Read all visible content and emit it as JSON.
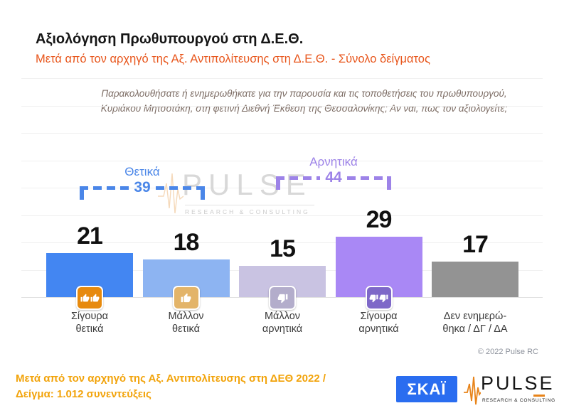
{
  "slide": {
    "title": "Αξιολόγηση Πρωθυπουργού στη Δ.Ε.Θ.",
    "subtitle": "Μετά από τον αρχηγό της Αξ. Αντιπολίτευσης στη Δ.Ε.Θ.  -  Σύνολο δείγματος",
    "question_line1": "Παρακολουθήσατε ή ενημερωθήκατε για την παρουσία και τις τοποθετήσεις του πρωθυπουργού,",
    "question_line2": "Κυριάκου Μητσοτάκη, στη φετινή Διεθνή Έκθεση της Θεσσαλονίκης; Αν ναι, πως τον αξιολογείτε;",
    "copyright": "© 2022 Pulse RC"
  },
  "brackets": {
    "positive": {
      "label": "Θετικά",
      "value": "39",
      "color": "#4a86e8"
    },
    "negative": {
      "label": "Αρνητικά",
      "value": "44",
      "color": "#9d83e8"
    }
  },
  "chart_data": {
    "type": "bar",
    "title": "Αξιολόγηση Πρωθυπουργού στη Δ.Ε.Θ.",
    "categories": [
      "Σίγουρα θετικά",
      "Μάλλον θετικά",
      "Μάλλον αρνητικά",
      "Σίγουρα αρνητικά",
      "Δεν ενημερώθηκα / ΔΓ / ΔΑ"
    ],
    "values": [
      21,
      18,
      15,
      29,
      17
    ],
    "aggregates": [
      {
        "label": "Θετικά",
        "value": 39
      },
      {
        "label": "Αρνητικά",
        "value": 44
      }
    ],
    "ylim": [
      0,
      32
    ],
    "grid": "faint-horizontal",
    "legend": "none",
    "bars": [
      {
        "value": 21,
        "label1": "Σίγουρα",
        "label2": "θετικά",
        "color": "#4386f2",
        "icon": "double-thumbs-up-icon",
        "icon_bg": "#e78a0e"
      },
      {
        "value": 18,
        "label1": "Μάλλον",
        "label2": "θετικά",
        "color": "#8db4f2",
        "icon": "thumb-up-icon",
        "icon_bg": "#e3b469"
      },
      {
        "value": 15,
        "label1": "Μάλλον",
        "label2": "αρνητικά",
        "color": "#c9c3e2",
        "icon": "thumb-down-icon",
        "icon_bg": "#b3adcb"
      },
      {
        "value": 29,
        "label1": "Σίγουρα",
        "label2": "αρνητικά",
        "color": "#a988f5",
        "icon": "double-thumbs-down-icon",
        "icon_bg": "#7e68c8"
      },
      {
        "value": 17,
        "label1": "Δεν ενημερώ-",
        "label2": "θηκα / ΔΓ / ΔΑ",
        "color": "#939393",
        "icon": null,
        "icon_bg": null
      }
    ]
  },
  "watermark": {
    "name": "PULSE",
    "tagline": "RESEARCH & CONSULTING"
  },
  "footer": {
    "line1": "Μετά από τον αρχηγό της Αξ. Αντιπολίτευσης στη ΔΕΘ  2022  /",
    "line2": "Δείγμα:  1.012 συνεντεύξεις",
    "skai_logo": "ΣΚΑΪ",
    "pulse_logo": "PULSE",
    "pulse_tagline": "RESEARCH & CONSULTING"
  }
}
